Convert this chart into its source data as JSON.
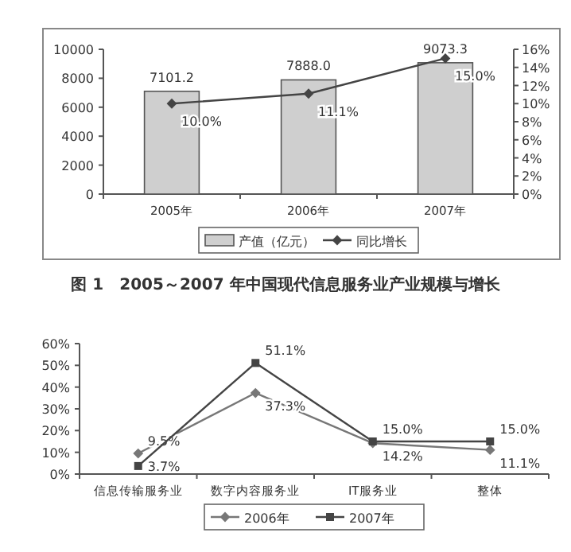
{
  "chart_data": [
    {
      "type": "bar",
      "title": "图 1　2005～2007 年中国现代信息服务业产业规模与增长",
      "categories": [
        "2005年",
        "2006年",
        "2007年"
      ],
      "series": [
        {
          "name": "产值（亿元）",
          "color": "#cfcfcf",
          "values": [
            7101.2,
            7888.0,
            9073.3
          ],
          "value_labels": [
            "7101.2",
            "7888.0",
            "9073.3"
          ]
        },
        {
          "name": "同比增长",
          "type": "line",
          "axis": "y2",
          "color": "#444444",
          "marker": "diamond",
          "values": [
            10.0,
            11.1,
            15.0
          ],
          "value_labels": [
            "10.0%",
            "11.1%",
            "15.0%"
          ]
        }
      ],
      "ylim": [
        0,
        10000
      ],
      "yticks": [
        0,
        2000,
        4000,
        6000,
        8000,
        10000
      ],
      "y2lim": [
        0,
        16
      ],
      "y2ticks": [
        {
          "value": 0,
          "label": "0%"
        },
        {
          "value": 2,
          "label": "2%"
        },
        {
          "value": 4,
          "label": "4%"
        },
        {
          "value": 6,
          "label": "6%"
        },
        {
          "value": 8,
          "label": "8%"
        },
        {
          "value": 10,
          "label": "10%"
        },
        {
          "value": 12,
          "label": "12%"
        },
        {
          "value": 14,
          "label": "14%"
        },
        {
          "value": 16,
          "label": "16%"
        }
      ],
      "grid": false,
      "legend": "bottom"
    },
    {
      "type": "line",
      "categories": [
        "信息传输服务业",
        "数字内容服务业",
        "IT服务业",
        "整体"
      ],
      "series": [
        {
          "name": "2006年",
          "color": "#777777",
          "marker": "diamond",
          "values": [
            9.5,
            37.3,
            14.2,
            11.1
          ],
          "value_labels": [
            "9.5%",
            "37.3%",
            "14.2%",
            "11.1%"
          ]
        },
        {
          "name": "2007年",
          "color": "#444444",
          "marker": "square",
          "values": [
            3.7,
            51.1,
            15.0,
            15.0
          ],
          "value_labels": [
            "3.7%",
            "51.1%",
            "15.0%",
            "15.0%"
          ]
        }
      ],
      "ylim": [
        0,
        60
      ],
      "yticks": [
        {
          "value": 0,
          "label": "0%"
        },
        {
          "value": 10,
          "label": "10%"
        },
        {
          "value": 20,
          "label": "20%"
        },
        {
          "value": 30,
          "label": "30%"
        },
        {
          "value": 40,
          "label": "40%"
        },
        {
          "value": 50,
          "label": "50%"
        },
        {
          "value": 60,
          "label": "60%"
        }
      ],
      "grid": false,
      "legend": "bottom"
    }
  ]
}
